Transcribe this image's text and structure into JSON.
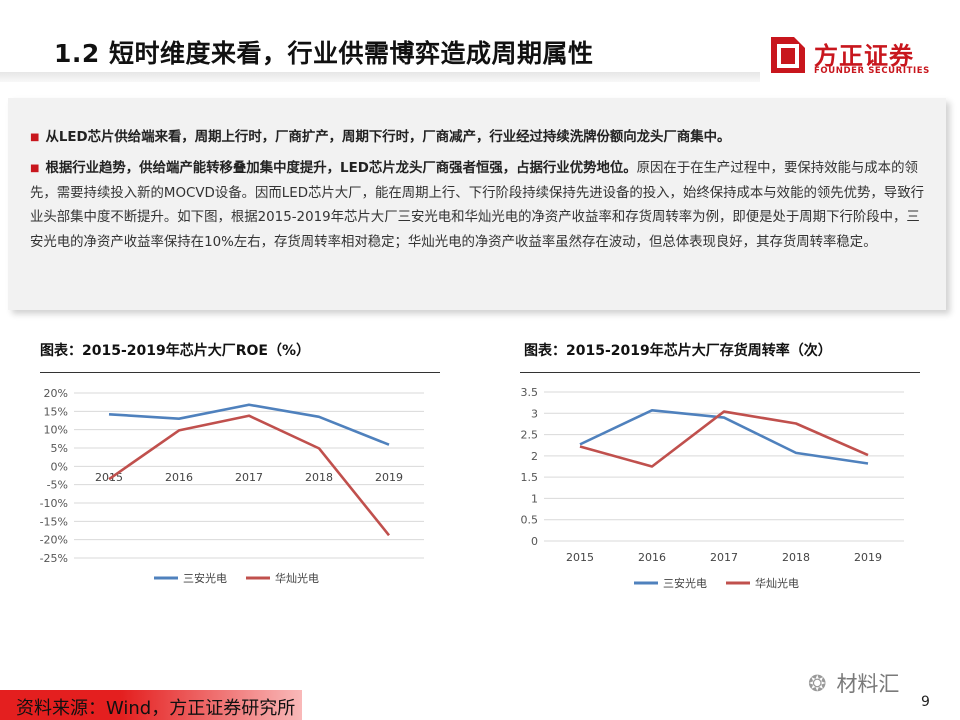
{
  "header": {
    "title": "1.2 短时维度来看，行业供需博弈造成周期属性",
    "logo_cn": "方正证券",
    "logo_en": "FOUNDER SECURITIES"
  },
  "bullets": {
    "b1": "从LED芯片供给端来看，周期上行时，厂商扩产，周期下行时，厂商减产，行业经过持续洗牌份额向龙头厂商集中。",
    "b2_lead": "根据行业趋势，供给端产能转移叠加集中度提升，LED芯片龙头厂商强者恒强，占据行业优势地位。",
    "b2_rest": "原因在于在生产过程中，要保持效能与成本的领先，需要持续投入新的MOCVD设备。因而LED芯片大厂，能在周期上行、下行阶段持续保持先进设备的投入，始终保持成本与效能的领先优势，导致行业头部集中度不断提升。如下图，根据2015-2019年芯片大厂三安光电和华灿光电的净资产收益率和存货周转率为例，即便是处于周期下行阶段中，三安光电的净资产收益率保持在10%左右，存货周转率相对稳定；华灿光电的净资产收益率虽然存在波动，但总体表现良好，其存货周转率稳定。"
  },
  "chart_data": [
    {
      "type": "line",
      "title": "图表：2015-2019年芯片大厂ROE（%）",
      "categories": [
        "2015",
        "2016",
        "2017",
        "2018",
        "2019"
      ],
      "y_ticks": [
        "20%",
        "15%",
        "10%",
        "5%",
        "0%",
        "-5%",
        "-10%",
        "-15%",
        "-20%",
        "-25%"
      ],
      "ylim": [
        -25,
        20
      ],
      "series": [
        {
          "name": "三安光电",
          "color": "#4f81bd",
          "values": [
            14.2,
            13.0,
            16.8,
            13.5,
            5.9
          ]
        },
        {
          "name": "华灿光电",
          "color": "#c0504d",
          "values": [
            -3.5,
            9.8,
            13.8,
            4.9,
            -18.8
          ]
        }
      ]
    },
    {
      "type": "line",
      "title": "图表：2015-2019年芯片大厂存货周转率（次）",
      "categories": [
        "2015",
        "2016",
        "2017",
        "2018",
        "2019"
      ],
      "y_ticks": [
        "3.5",
        "3",
        "2.5",
        "2",
        "1.5",
        "1",
        "0.5",
        "0"
      ],
      "ylim": [
        0,
        3.5
      ],
      "series": [
        {
          "name": "三安光电",
          "color": "#4f81bd",
          "values": [
            2.27,
            3.07,
            2.9,
            2.07,
            1.82
          ]
        },
        {
          "name": "华灿光电",
          "color": "#c0504d",
          "values": [
            2.22,
            1.75,
            3.04,
            2.76,
            2.02
          ]
        }
      ]
    }
  ],
  "footer": {
    "source": "资料来源：Wind，方正证券研究所",
    "page": "9",
    "watermark": "材料汇"
  },
  "colors": {
    "brand_red": "#c8161d",
    "series1": "#4f81bd",
    "series2": "#c0504d"
  }
}
